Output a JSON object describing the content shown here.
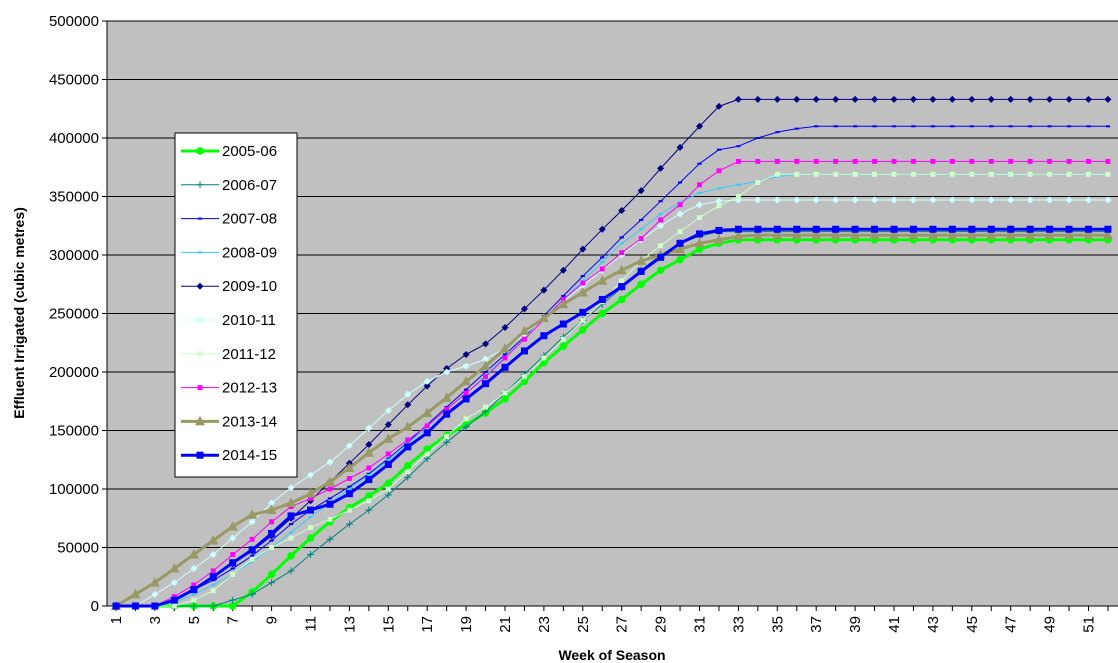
{
  "chart_data": {
    "type": "line",
    "title": "",
    "xlabel": "Week of Season",
    "ylabel": "Effluent Irrigated (cubic metres)",
    "ylim": [
      0,
      500000
    ],
    "yticks": [
      0,
      50000,
      100000,
      150000,
      200000,
      250000,
      300000,
      350000,
      400000,
      450000,
      500000
    ],
    "ytick_labels": [
      "0",
      "50000",
      "100000",
      "150000",
      "200000",
      "250000",
      "300000",
      "350000",
      "400000",
      "450000",
      "500000"
    ],
    "x": [
      1,
      2,
      3,
      4,
      5,
      6,
      7,
      8,
      9,
      10,
      11,
      12,
      13,
      14,
      15,
      16,
      17,
      18,
      19,
      20,
      21,
      22,
      23,
      24,
      25,
      26,
      27,
      28,
      29,
      30,
      31,
      32,
      33,
      34,
      35,
      36,
      37,
      38,
      39,
      40,
      41,
      42,
      43,
      44,
      45,
      46,
      47,
      48,
      49,
      50,
      51,
      52
    ],
    "xtick_labels": [
      "1",
      "3",
      "5",
      "7",
      "9",
      "11",
      "13",
      "15",
      "17",
      "19",
      "21",
      "23",
      "25",
      "27",
      "29",
      "31",
      "33",
      "35",
      "37",
      "39",
      "41",
      "43",
      "45",
      "47",
      "49",
      "51"
    ],
    "grid": "horizontal",
    "background": "#c0c0c0",
    "legend_position": "left",
    "series": [
      {
        "name": "2005-06",
        "color": "#00ff00",
        "marker": "circle",
        "width": 3,
        "values": [
          0,
          0,
          0,
          0,
          0,
          0,
          0,
          12000,
          27000,
          43000,
          58000,
          72000,
          84000,
          94000,
          105000,
          120000,
          134000,
          146000,
          155000,
          165000,
          177000,
          192000,
          208000,
          222000,
          236000,
          250000,
          262000,
          275000,
          287000,
          296000,
          305000,
          310000,
          313000,
          313000,
          313000,
          313000,
          313000,
          313000,
          313000,
          313000,
          313000,
          313000,
          313000,
          313000,
          313000,
          313000,
          313000,
          313000,
          313000,
          313000,
          313000,
          313000
        ]
      },
      {
        "name": "2006-07",
        "color": "#008080",
        "marker": "plus",
        "width": 1,
        "values": [
          0,
          0,
          0,
          0,
          0,
          0,
          5000,
          10000,
          20000,
          30000,
          44000,
          57000,
          70000,
          82000,
          95000,
          110000,
          126000,
          140000,
          153000,
          166000,
          182000,
          198000,
          214000,
          230000,
          244000,
          258000,
          272000,
          287000,
          300000,
          310000,
          316000,
          320000,
          320000,
          320000,
          320000,
          320000,
          320000,
          320000,
          320000,
          320000,
          320000,
          320000,
          320000,
          320000,
          320000,
          320000,
          320000,
          320000,
          320000,
          320000,
          320000,
          320000
        ]
      },
      {
        "name": "2007-08",
        "color": "#0000ff",
        "marker": "dash",
        "width": 1,
        "values": [
          0,
          0,
          0,
          5000,
          14000,
          22000,
          32000,
          43000,
          56000,
          70000,
          82000,
          92000,
          102000,
          113000,
          126000,
          140000,
          155000,
          170000,
          185000,
          200000,
          215000,
          230000,
          248000,
          265000,
          282000,
          298000,
          315000,
          330000,
          346000,
          362000,
          378000,
          390000,
          393000,
          400000,
          405000,
          408000,
          410000,
          410000,
          410000,
          410000,
          410000,
          410000,
          410000,
          410000,
          410000,
          410000,
          410000,
          410000,
          410000,
          410000,
          410000,
          410000
        ]
      },
      {
        "name": "2008-09",
        "color": "#33ccff",
        "marker": "dash",
        "width": 1,
        "values": [
          0,
          0,
          0,
          3000,
          10000,
          18000,
          27000,
          38000,
          50000,
          63000,
          76000,
          88000,
          100000,
          112000,
          125000,
          139000,
          153000,
          168000,
          182000,
          197000,
          213000,
          228000,
          245000,
          262000,
          278000,
          294000,
          310000,
          322000,
          335000,
          345000,
          353000,
          357000,
          360000,
          363000,
          367000,
          369000,
          369000,
          369000,
          369000,
          369000,
          369000,
          369000,
          369000,
          369000,
          369000,
          369000,
          369000,
          369000,
          369000,
          369000,
          369000,
          369000
        ]
      },
      {
        "name": "2009-10",
        "color": "#000080",
        "marker": "diamond",
        "width": 1,
        "values": [
          0,
          0,
          0,
          5000,
          15000,
          25000,
          36000,
          47000,
          60000,
          75000,
          90000,
          106000,
          122000,
          138000,
          155000,
          172000,
          188000,
          203000,
          215000,
          224000,
          238000,
          254000,
          270000,
          287000,
          305000,
          322000,
          338000,
          355000,
          374000,
          392000,
          410000,
          427000,
          433000,
          433000,
          433000,
          433000,
          433000,
          433000,
          433000,
          433000,
          433000,
          433000,
          433000,
          433000,
          433000,
          433000,
          433000,
          433000,
          433000,
          433000,
          433000,
          433000
        ]
      },
      {
        "name": "2010-11",
        "color": "#ccffff",
        "marker": "diamond",
        "width": 1,
        "values": [
          0,
          0,
          10000,
          20000,
          32000,
          44000,
          58000,
          72000,
          88000,
          101000,
          112000,
          123000,
          137000,
          152000,
          167000,
          181000,
          192000,
          200000,
          205000,
          211000,
          220000,
          232000,
          246000,
          260000,
          274000,
          287000,
          300000,
          313000,
          325000,
          335000,
          343000,
          346000,
          347000,
          347000,
          347000,
          347000,
          347000,
          347000,
          347000,
          347000,
          347000,
          347000,
          347000,
          347000,
          347000,
          347000,
          347000,
          347000,
          347000,
          347000,
          347000,
          347000
        ]
      },
      {
        "name": "2011-12",
        "color": "#ccffcc",
        "marker": "square",
        "width": 1,
        "values": [
          0,
          0,
          0,
          0,
          5000,
          13000,
          27000,
          40000,
          50000,
          58000,
          67000,
          74000,
          82000,
          90000,
          100000,
          115000,
          130000,
          145000,
          160000,
          170000,
          182000,
          196000,
          212000,
          228000,
          244000,
          260000,
          278000,
          295000,
          308000,
          320000,
          332000,
          342000,
          350000,
          362000,
          369000,
          369000,
          369000,
          369000,
          369000,
          369000,
          369000,
          369000,
          369000,
          369000,
          369000,
          369000,
          369000,
          369000,
          369000,
          369000,
          369000,
          369000
        ]
      },
      {
        "name": "2012-13",
        "color": "#ff00ff",
        "marker": "square",
        "width": 1,
        "values": [
          0,
          0,
          0,
          8000,
          18000,
          30000,
          44000,
          57000,
          72000,
          85000,
          92000,
          100000,
          109000,
          118000,
          130000,
          142000,
          154000,
          168000,
          182000,
          196000,
          212000,
          228000,
          245000,
          262000,
          276000,
          288000,
          302000,
          314000,
          330000,
          343000,
          360000,
          372000,
          380000,
          380000,
          380000,
          380000,
          380000,
          380000,
          380000,
          380000,
          380000,
          380000,
          380000,
          380000,
          380000,
          380000,
          380000,
          380000,
          380000,
          380000,
          380000,
          380000
        ]
      },
      {
        "name": "2013-14",
        "color": "#999966",
        "marker": "triangle",
        "width": 3,
        "values": [
          0,
          10000,
          20000,
          32000,
          44000,
          56000,
          68000,
          78000,
          82000,
          88000,
          96000,
          106000,
          118000,
          131000,
          143000,
          153000,
          165000,
          178000,
          192000,
          205000,
          220000,
          235000,
          246000,
          258000,
          268000,
          278000,
          287000,
          295000,
          300000,
          305000,
          310000,
          313000,
          316000,
          317000,
          317000,
          317000,
          317000,
          317000,
          317000,
          317000,
          317000,
          317000,
          317000,
          317000,
          317000,
          317000,
          317000,
          317000,
          317000,
          317000,
          317000,
          317000
        ]
      },
      {
        "name": "2014-15",
        "color": "#0000ff",
        "marker": "square",
        "width": 3,
        "values": [
          0,
          0,
          0,
          5000,
          14000,
          25000,
          37000,
          48000,
          62000,
          77000,
          82000,
          87000,
          96000,
          108000,
          121000,
          136000,
          148000,
          164000,
          177000,
          190000,
          204000,
          218000,
          231000,
          241000,
          251000,
          262000,
          273000,
          286000,
          298000,
          310000,
          318000,
          321000,
          322000,
          322000,
          322000,
          322000,
          322000,
          322000,
          322000,
          322000,
          322000,
          322000,
          322000,
          322000,
          322000,
          322000,
          322000,
          322000,
          322000,
          322000,
          322000,
          322000
        ]
      }
    ]
  }
}
